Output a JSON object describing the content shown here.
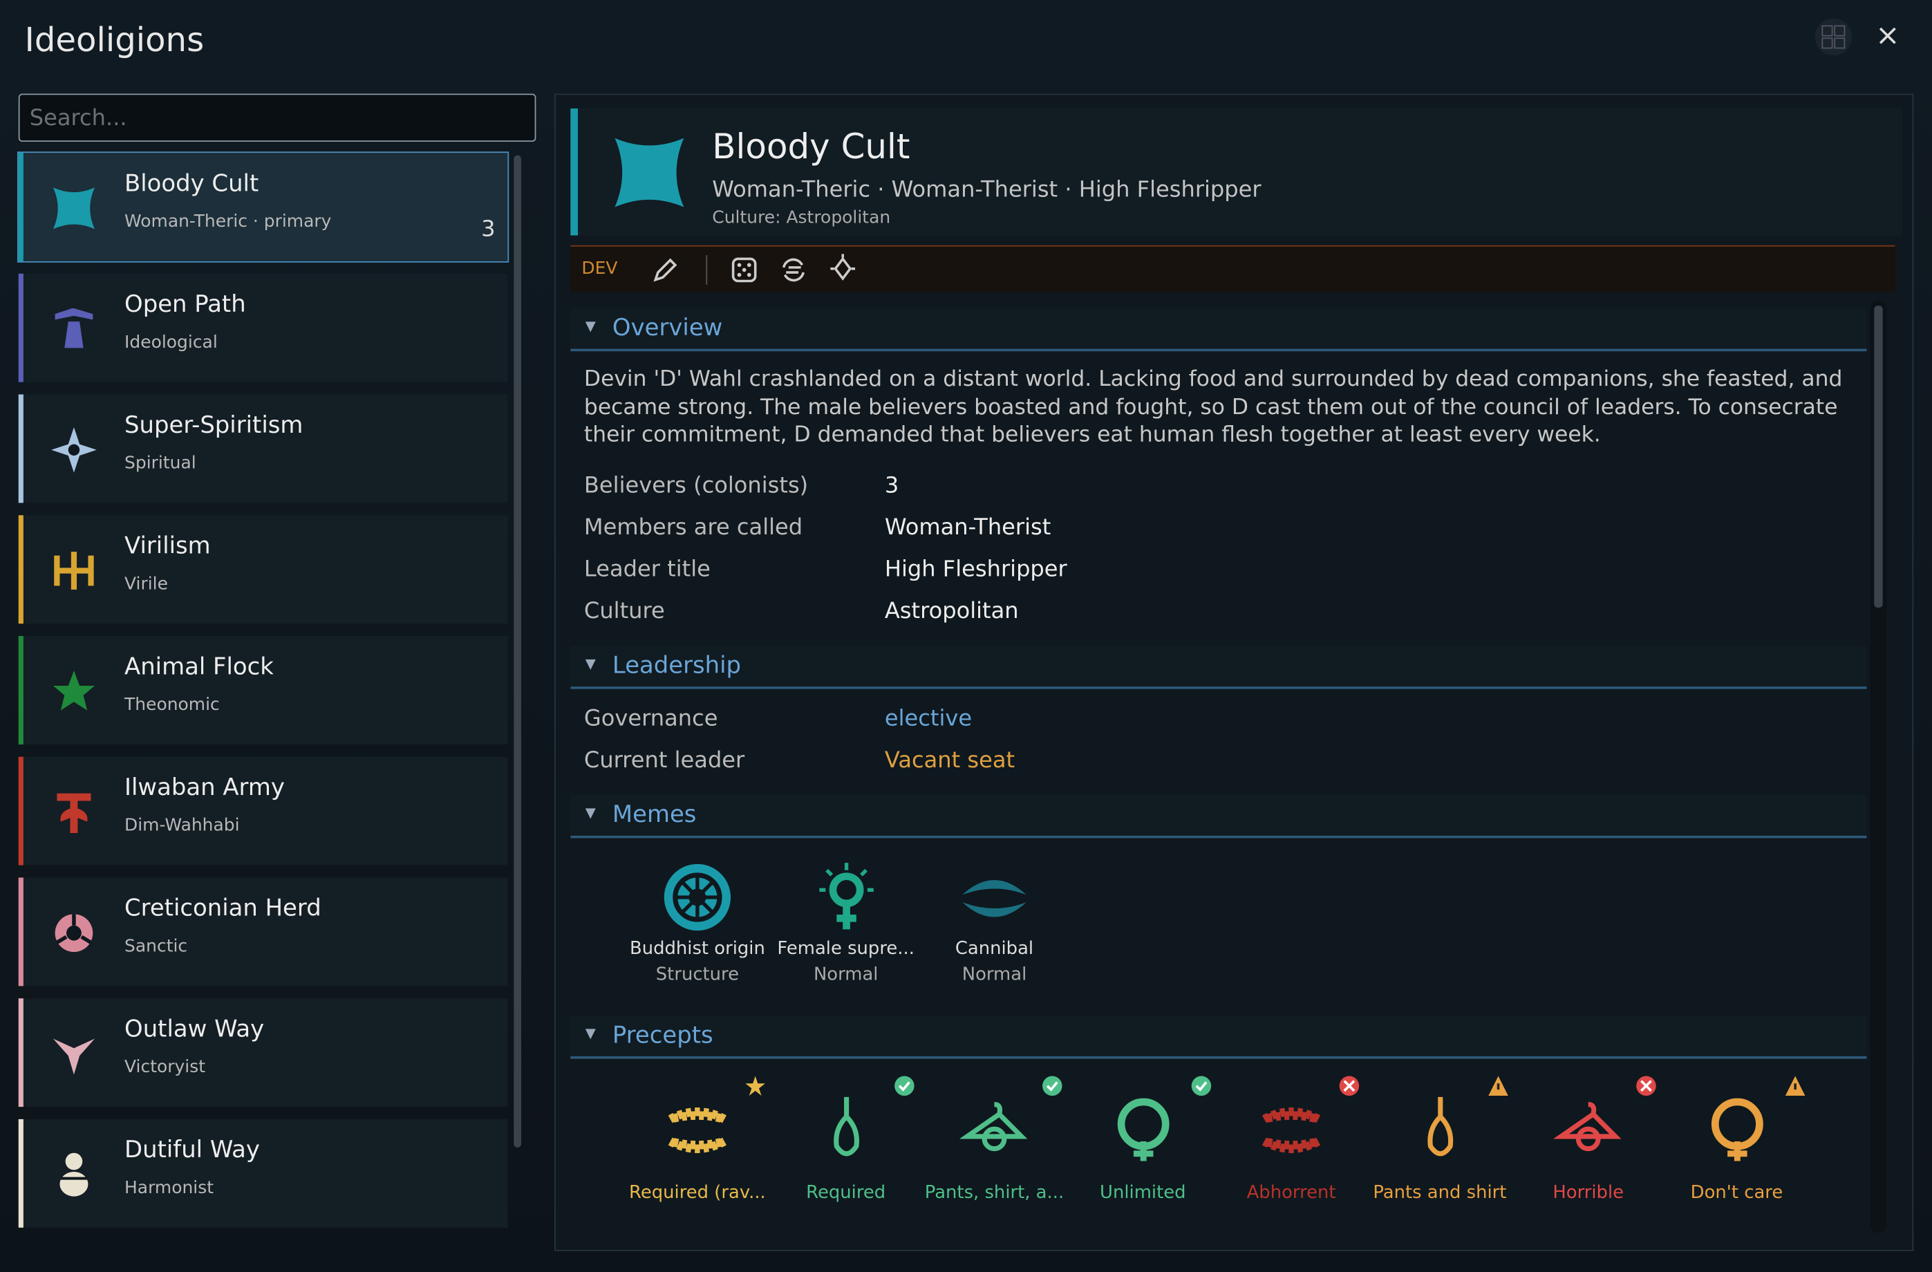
{
  "window": {
    "title": "Ideoligions",
    "search_placeholder": "Search..."
  },
  "ideoligions": [
    {
      "name": "Bloody Cult",
      "subtitle": "Woman-Theric · primary",
      "count": "3",
      "color": "#1a9bab",
      "selected": true
    },
    {
      "name": "Open Path",
      "subtitle": "Ideological",
      "color": "#5b5fb8"
    },
    {
      "name": "Super-Spiritism",
      "subtitle": "Spiritual",
      "color": "#a9c4e0"
    },
    {
      "name": "Virilism",
      "subtitle": "Virile",
      "color": "#d9a531"
    },
    {
      "name": "Animal Flock",
      "subtitle": "Theonomic",
      "color": "#1f8a3a"
    },
    {
      "name": "Ilwaban Army",
      "subtitle": "Dim-Wahhabi",
      "color": "#c0392b"
    },
    {
      "name": "Creticonian Herd",
      "subtitle": "Sanctic",
      "color": "#d98a9a"
    },
    {
      "name": "Outlaw Way",
      "subtitle": "Victoryist",
      "color": "#e0aeb8"
    },
    {
      "name": "Dutiful Way",
      "subtitle": "Harmonist",
      "color": "#e8e2d0"
    }
  ],
  "detail": {
    "name": "Bloody Cult",
    "subtitle": "Woman-Theric · Woman-Therist · High Fleshripper",
    "culture": "Culture: Astropolitan",
    "dev": "DEV",
    "overview": {
      "title": "Overview",
      "text": "Devin 'D' Wahl crashlanded on a distant world. Lacking food and surrounded by dead companions, she feasted, and became strong. The male believers boasted and fought, so D cast them out of the council of leaders. To consecrate their commitment, D demanded that believers eat human flesh together at least every week.",
      "rows": [
        [
          "Believers (colonists)",
          "3"
        ],
        [
          "Members are called",
          "Woman-Therist"
        ],
        [
          "Leader title",
          "High Fleshripper"
        ],
        [
          "Culture",
          "Astropolitan"
        ]
      ]
    },
    "leadership": {
      "title": "Leadership",
      "rows": [
        [
          "Governance",
          "elective"
        ],
        [
          "Current leader",
          "Vacant seat"
        ]
      ]
    },
    "memes": {
      "title": "Memes",
      "items": [
        {
          "name": "Buddhist origin",
          "category": "Structure",
          "color": "#1a9bab"
        },
        {
          "name": "Female supre...",
          "category": "Normal",
          "color": "#1fa88a"
        },
        {
          "name": "Cannibal",
          "category": "Normal",
          "color": "#1a6f80"
        }
      ]
    },
    "precepts": {
      "title": "Precepts",
      "items": [
        {
          "label": "Required (rav...",
          "color": "#e8b84a"
        },
        {
          "label": "Required",
          "color": "#4fbf8a"
        },
        {
          "label": "Pants, shirt, a...",
          "color": "#4fbf8a"
        },
        {
          "label": "Unlimited",
          "color": "#4fbf8a"
        },
        {
          "label": "Abhorrent",
          "color": "#b8322a"
        },
        {
          "label": "Pants and shirt",
          "color": "#e8a040"
        },
        {
          "label": "Horrible",
          "color": "#e04848"
        },
        {
          "label": "Don't care",
          "color": "#e8a040"
        }
      ]
    }
  }
}
